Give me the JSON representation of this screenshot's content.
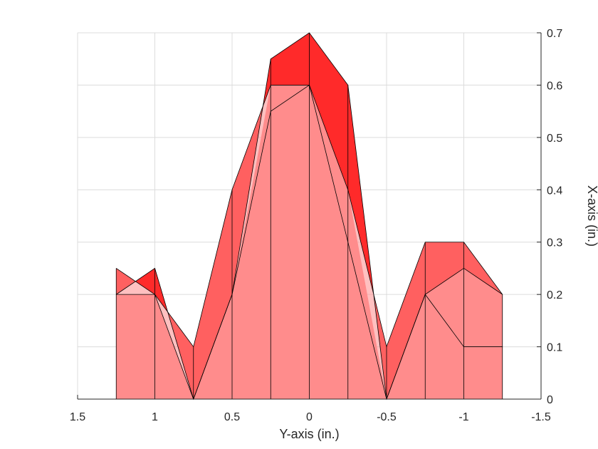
{
  "chart_data": {
    "type": "area",
    "xlabel": "Y-axis (in.)",
    "ylabel": "X-axis (in.)",
    "xlim": [
      1.5,
      -1.5
    ],
    "ylim": [
      0,
      0.7
    ],
    "x_reversed": true,
    "ylabel_side": "right",
    "grid": true,
    "xticks": [
      1.5,
      1,
      0.5,
      0,
      -0.5,
      -1,
      -1.5
    ],
    "xtick_labels": [
      "1.5",
      "1",
      "0.5",
      "0",
      "-0.5",
      "-1",
      "-1.5"
    ],
    "yticks": [
      0,
      0.1,
      0.2,
      0.3,
      0.4,
      0.5,
      0.6,
      0.7
    ],
    "ytick_labels": [
      "0",
      "0.1",
      "0.2",
      "0.3",
      "0.4",
      "0.5",
      "0.6",
      "0.7"
    ],
    "x": [
      1.25,
      1,
      0.75,
      0.5,
      0.25,
      0,
      -0.25,
      -0.5,
      -0.75,
      -1,
      -1.25
    ],
    "series": [
      {
        "values": [
          0.25,
          0.2,
          0.1,
          0.4,
          0.6,
          0.6,
          0.4,
          0.1,
          0.3,
          0.3,
          0.2
        ]
      },
      {
        "values": [
          0.2,
          0.25,
          0,
          0.2,
          0.65,
          0.7,
          0.6,
          0,
          0.2,
          0.25,
          0.2
        ]
      },
      {
        "values": [
          0.2,
          0.2,
          0,
          0.2,
          0.55,
          0.6,
          0.3,
          0,
          0.2,
          0.1,
          0.1
        ]
      }
    ],
    "colors": {
      "light_fill": "#ff8c8c",
      "dark_fill": "#ff2a2a",
      "edge": "#000000",
      "grid": "#dcdcdc",
      "axis": "#262626"
    }
  }
}
